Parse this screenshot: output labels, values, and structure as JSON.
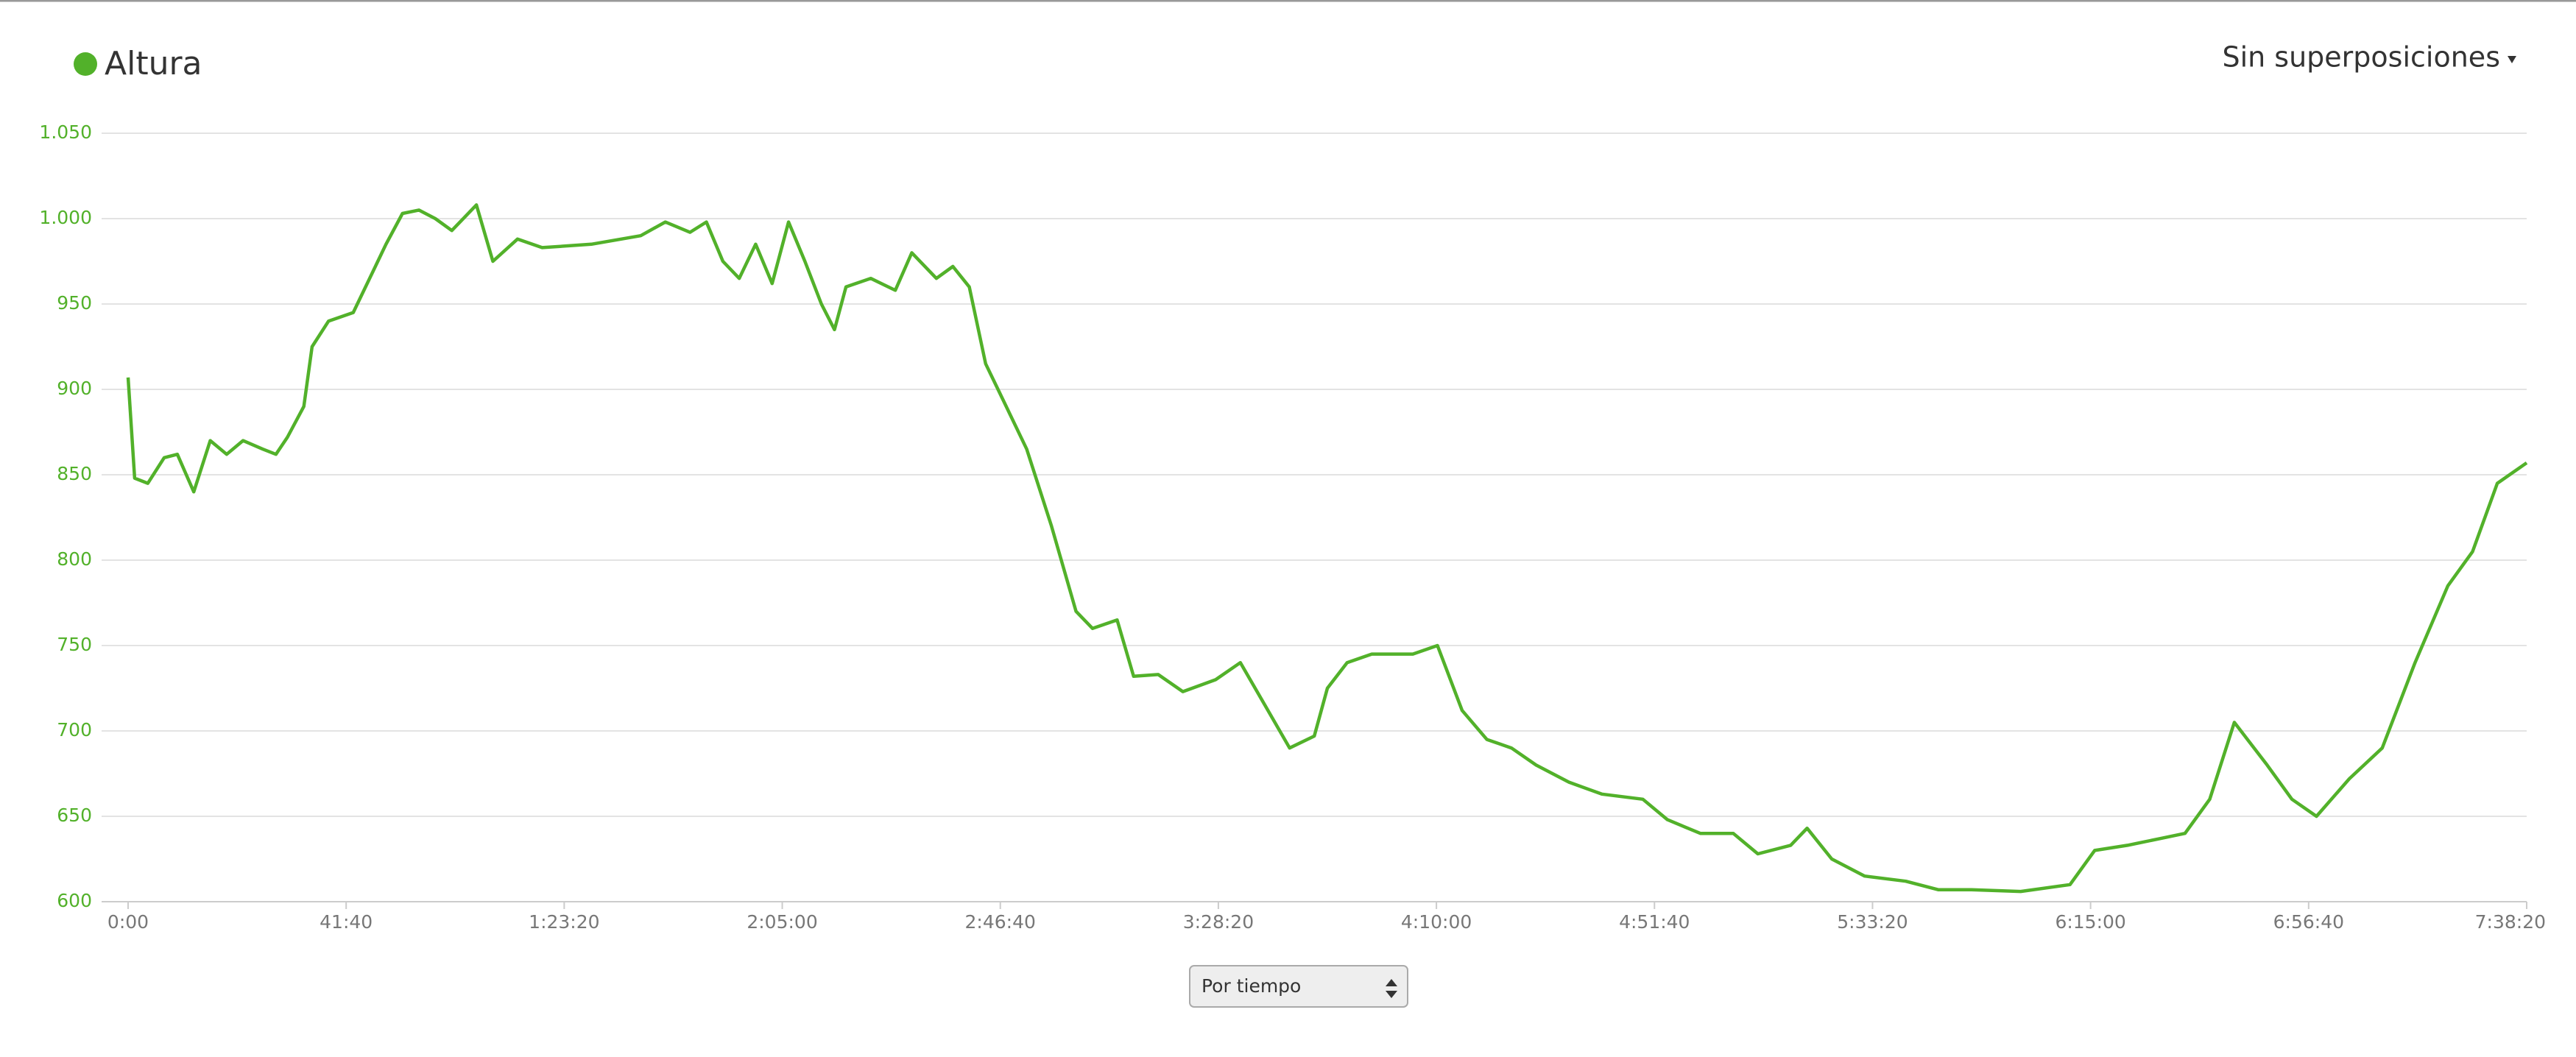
{
  "chart_data": {
    "type": "line",
    "x": [
      0,
      75,
      226,
      414,
      565,
      753,
      942,
      1130,
      1318,
      1545,
      1695,
      1827,
      2015,
      2109,
      2298,
      2581,
      2769,
      2957,
      3146,
      3334,
      3522,
      3711,
      3993,
      4182,
      4464,
      4747,
      5312,
      5877,
      6159,
      6442,
      6630,
      6819,
      7007,
      7195,
      7384,
      7572,
      7760,
      7949,
      8099,
      8231,
      8514,
      8796,
      8985,
      9267,
      9456,
      9644,
      9832,
      10021,
      10303,
      10586,
      10868,
      11057,
      11339,
      11528,
      11810,
      12093,
      12469,
      12752,
      13035,
      13317,
      13600,
      13750,
      13976,
      14259,
      14730,
      15012,
      15295,
      15578,
      15860,
      16143,
      16519,
      16896,
      17367,
      17649,
      18026,
      18403,
      18685,
      19062,
      19250,
      19533,
      19910,
      20381,
      20757,
      21134,
      21699,
      22264,
      22547,
      22923,
      23300,
      23583,
      23866,
      24148,
      24525,
      24808,
      25090,
      25467,
      25844,
      26220,
      26597,
      26880,
      27163,
      27500
    ],
    "series": [
      {
        "name": "Altura",
        "color": "#52b12a",
        "values": [
          907,
          848,
          845,
          860,
          862,
          840,
          870,
          862,
          870,
          865,
          862,
          872,
          890,
          925,
          940,
          945,
          965,
          985,
          1003,
          1005,
          1000,
          993,
          1008,
          975,
          988,
          983,
          985,
          990,
          998,
          992,
          998,
          975,
          965,
          985,
          962,
          998,
          975,
          950,
          935,
          960,
          965,
          958,
          980,
          965,
          972,
          960,
          915,
          895,
          865,
          820,
          770,
          760,
          765,
          732,
          733,
          723,
          730,
          740,
          715,
          690,
          697,
          725,
          740,
          745,
          745,
          750,
          712,
          695,
          690,
          680,
          670,
          663,
          660,
          648,
          640,
          640,
          628,
          633,
          643,
          625,
          615,
          612,
          607,
          607,
          606,
          610,
          630,
          633,
          637,
          640,
          660,
          705,
          680,
          660,
          650,
          672,
          690,
          740,
          785,
          805,
          845,
          857
        ]
      }
    ],
    "xlim": [
      0,
      27500
    ],
    "xticks": [
      {
        "value": 0,
        "label": "0:00"
      },
      {
        "value": 2500,
        "label": "41:40"
      },
      {
        "value": 5000,
        "label": "1:23:20"
      },
      {
        "value": 7500,
        "label": "2:05:00"
      },
      {
        "value": 10000,
        "label": "2:46:40"
      },
      {
        "value": 12500,
        "label": "3:28:20"
      },
      {
        "value": 15000,
        "label": "4:10:00"
      },
      {
        "value": 17500,
        "label": "4:51:40"
      },
      {
        "value": 20000,
        "label": "5:33:20"
      },
      {
        "value": 22500,
        "label": "6:15:00"
      },
      {
        "value": 25000,
        "label": "6:56:40"
      },
      {
        "value": 27500,
        "label": "7:38:20"
      }
    ],
    "ylim": [
      600,
      1050
    ],
    "yticks": [
      600,
      650,
      700,
      750,
      800,
      850,
      900,
      950,
      {
        "value": 1000,
        "label": "1.000"
      },
      {
        "value": 1050,
        "label": "1.050"
      }
    ],
    "grid": true
  },
  "controls": {
    "overlay": "Sin superposiciones",
    "x_mode": "Por tiempo"
  }
}
